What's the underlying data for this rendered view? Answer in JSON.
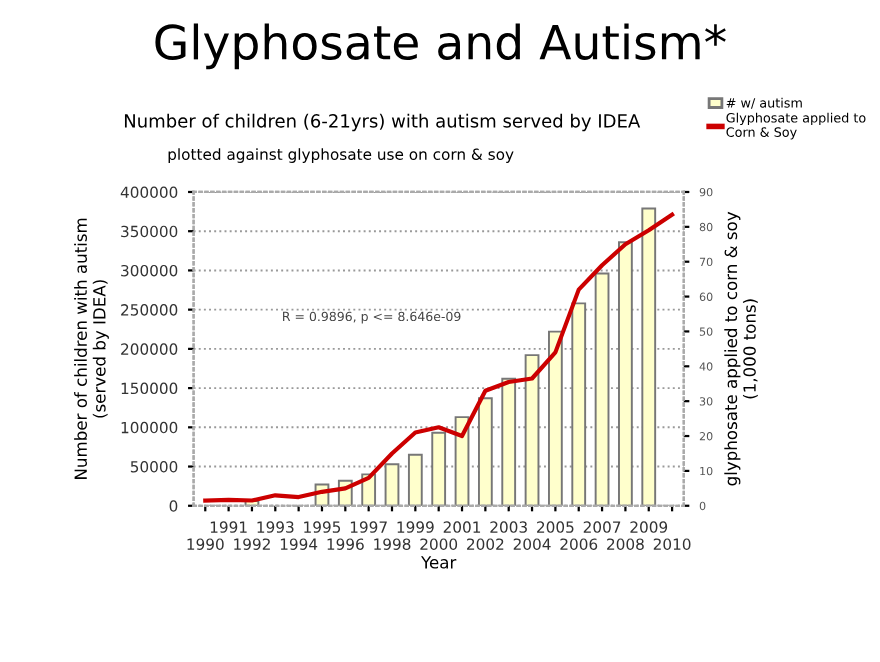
{
  "chart_data": {
    "type": "bar",
    "title": "Glyphosate and Autism*",
    "subtitle": "Number of children (6-21yrs) with autism served by IDEA",
    "xlabel": "Year",
    "ylabel": "Number of children with autism\n(served by IDEA)",
    "y2label": "glyphosate applied to corn & soy\n(1,000 tons)",
    "annotations": [
      "plotted against glyphosate use on corn & soy",
      "R = 0.9896, p <= 8.646e-09"
    ],
    "categories": [
      "1990",
      "1991",
      "1992",
      "1993",
      "1994",
      "1995",
      "1996",
      "1997",
      "1998",
      "1999",
      "2000",
      "2001",
      "2002",
      "2003",
      "2004",
      "2005",
      "2006",
      "2007",
      "2008",
      "2009",
      "2010"
    ],
    "series": [
      {
        "name": "# w/ autism",
        "color": "#ffffcc",
        "values": [
          null,
          null,
          6000,
          null,
          null,
          27000,
          32000,
          40000,
          53000,
          65000,
          93000,
          113000,
          137000,
          162000,
          192000,
          222000,
          258000,
          296000,
          336000,
          379000,
          null
        ]
      },
      {
        "name": "Glyphosate applied to\nCorn & Soy",
        "type": "line",
        "axis": "y2",
        "color": "#cc0000",
        "values": [
          1.5,
          1.7,
          1.5,
          3,
          2.5,
          4,
          5,
          8,
          15,
          21,
          22.5,
          20,
          33,
          35.5,
          36.5,
          44,
          62,
          69,
          75,
          79,
          83.5
        ]
      }
    ],
    "ylim": [
      0,
      400000
    ],
    "yticks": [
      0,
      50000,
      100000,
      150000,
      200000,
      250000,
      300000,
      350000,
      400000
    ],
    "y2lim": [
      0,
      90
    ],
    "y2ticks": [
      0,
      10,
      20,
      30,
      40,
      50,
      60,
      70,
      80,
      90
    ],
    "grid": "y",
    "legend": "top right",
    "marker": "none",
    "line_style": "solid"
  }
}
